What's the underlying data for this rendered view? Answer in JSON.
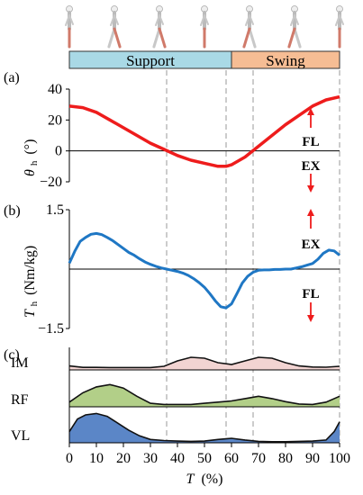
{
  "phase_bar": {
    "support_label": "Support",
    "swing_label": "Swing",
    "support_range": [
      0,
      60
    ],
    "swing_range": [
      60,
      100
    ],
    "support_color": "#a9d9e6",
    "swing_color": "#f6bd94"
  },
  "walker_figures": {
    "count": 7,
    "icon": "walking-person-icon",
    "highlight_color": "#d07a6a"
  },
  "dashed_lines_x": [
    36,
    58,
    68,
    100
  ],
  "chart_data": [
    {
      "panel": "(a)",
      "type": "line",
      "ylabel_main": "θ",
      "ylabel_sub": "h",
      "ylabel_unit": "(°)",
      "ylim": [
        -20,
        40
      ],
      "yticks": [
        40,
        20,
        0,
        -20
      ],
      "color": "#ee1c1c",
      "annotation_up": "FL",
      "annotation_down": "EX",
      "series": [
        {
          "x": [
            0,
            5,
            10,
            15,
            20,
            25,
            30,
            35,
            40,
            45,
            50,
            55,
            58,
            60,
            65,
            70,
            75,
            80,
            85,
            90,
            95,
            100
          ],
          "values": [
            29,
            28,
            25,
            20,
            15,
            10,
            5,
            1,
            -3,
            -6,
            -8,
            -10,
            -10,
            -9,
            -4,
            3,
            10,
            17,
            23,
            29,
            33,
            35
          ]
        }
      ]
    },
    {
      "panel": "(b)",
      "type": "line",
      "ylabel_main": "T",
      "ylabel_sub": "h",
      "ylabel_unit": "(Nm/kg)",
      "ylim": [
        -1.5,
        1.5
      ],
      "yticks": [
        1.5,
        -1.5
      ],
      "color": "#1f77c4",
      "annotation_up": "EX",
      "annotation_down": "FL",
      "series": [
        {
          "x": [
            0,
            2,
            4,
            6,
            8,
            10,
            12,
            14,
            16,
            18,
            20,
            22,
            24,
            26,
            28,
            30,
            32,
            34,
            36,
            38,
            40,
            42,
            44,
            46,
            48,
            50,
            52,
            54,
            56,
            58,
            60,
            62,
            64,
            66,
            68,
            70,
            72,
            74,
            76,
            78,
            80,
            82,
            84,
            86,
            88,
            90,
            92,
            94,
            96,
            98,
            100
          ],
          "values": [
            0.15,
            0.45,
            0.7,
            0.8,
            0.88,
            0.9,
            0.87,
            0.8,
            0.72,
            0.62,
            0.52,
            0.42,
            0.35,
            0.26,
            0.18,
            0.12,
            0.07,
            0.03,
            0.0,
            -0.03,
            -0.06,
            -0.1,
            -0.16,
            -0.24,
            -0.34,
            -0.46,
            -0.62,
            -0.8,
            -0.95,
            -0.98,
            -0.88,
            -0.62,
            -0.35,
            -0.18,
            -0.08,
            -0.03,
            -0.02,
            -0.02,
            -0.01,
            -0.01,
            0.0,
            0.0,
            0.03,
            0.06,
            0.1,
            0.14,
            0.25,
            0.4,
            0.48,
            0.46,
            0.35
          ]
        }
      ]
    },
    {
      "panel": "(c)",
      "type": "area",
      "series": [
        {
          "name": "IM",
          "color": "#f2d4d2",
          "x": [
            0,
            5,
            10,
            15,
            20,
            25,
            30,
            35,
            40,
            45,
            50,
            55,
            60,
            65,
            70,
            75,
            80,
            85,
            90,
            95,
            100
          ],
          "values": [
            0.22,
            0.14,
            0.14,
            0.13,
            0.13,
            0.13,
            0.13,
            0.2,
            0.5,
            0.7,
            0.65,
            0.4,
            0.3,
            0.5,
            0.7,
            0.65,
            0.4,
            0.22,
            0.16,
            0.15,
            0.2
          ]
        },
        {
          "name": "RF",
          "color": "#b2cf88",
          "x": [
            0,
            5,
            10,
            15,
            20,
            25,
            30,
            35,
            40,
            45,
            50,
            55,
            60,
            65,
            70,
            75,
            80,
            85,
            90,
            95,
            100
          ],
          "values": [
            0.2,
            0.6,
            0.85,
            0.95,
            0.8,
            0.45,
            0.15,
            0.1,
            0.1,
            0.1,
            0.15,
            0.2,
            0.25,
            0.35,
            0.45,
            0.35,
            0.22,
            0.12,
            0.1,
            0.2,
            0.45
          ]
        },
        {
          "name": "VL",
          "color": "#5b86c7",
          "x": [
            0,
            3,
            6,
            10,
            14,
            18,
            22,
            26,
            30,
            35,
            40,
            45,
            50,
            55,
            60,
            65,
            70,
            75,
            80,
            85,
            90,
            95,
            98,
            100
          ],
          "values": [
            0.4,
            0.85,
            1.0,
            1.05,
            0.95,
            0.7,
            0.45,
            0.25,
            0.12,
            0.08,
            0.06,
            0.05,
            0.06,
            0.12,
            0.16,
            0.1,
            0.05,
            0.04,
            0.04,
            0.05,
            0.06,
            0.1,
            0.4,
            0.75
          ]
        }
      ]
    }
  ],
  "x_axis": {
    "label": "T",
    "unit": "(%)",
    "ticks": [
      0,
      10,
      20,
      30,
      40,
      50,
      60,
      70,
      80,
      90,
      100
    ]
  }
}
